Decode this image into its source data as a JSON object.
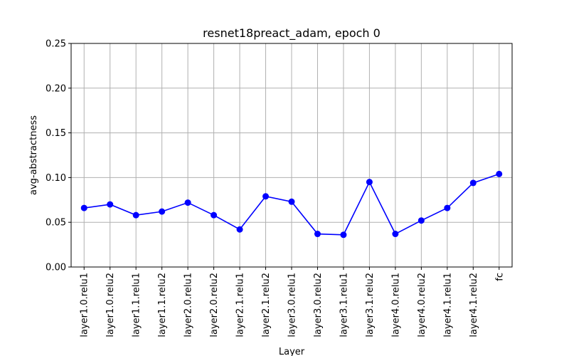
{
  "chart_data": {
    "type": "line",
    "title": "resnet18preact_adam, epoch 0",
    "xlabel": "Layer",
    "ylabel": "avg-abstractness",
    "ylim": [
      0.0,
      0.25
    ],
    "yticks": [
      "0.00",
      "0.05",
      "0.10",
      "0.15",
      "0.20",
      "0.25"
    ],
    "grid": true,
    "categories": [
      "layer1.0.relu1",
      "layer1.0.relu2",
      "layer1.1.relu1",
      "layer1.1.relu2",
      "layer2.0.relu1",
      "layer2.0.relu2",
      "layer2.1.relu1",
      "layer2.1.relu2",
      "layer3.0.relu1",
      "layer3.0.relu2",
      "layer3.1.relu1",
      "layer3.1.relu2",
      "layer4.0.relu1",
      "layer4.0.relu2",
      "layer4.1.relu1",
      "layer4.1.relu2",
      "fc"
    ],
    "series": [
      {
        "color": "#0000ff",
        "marker": "circle",
        "values": [
          0.066,
          0.07,
          0.058,
          0.062,
          0.072,
          0.058,
          0.042,
          0.079,
          0.073,
          0.037,
          0.036,
          0.095,
          0.037,
          0.052,
          0.066,
          0.094,
          0.104
        ]
      }
    ]
  }
}
